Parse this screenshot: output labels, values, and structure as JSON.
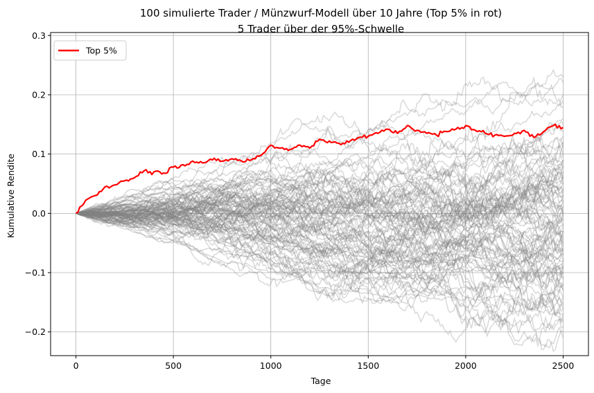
{
  "chart_data": {
    "type": "line",
    "title": "100 simulierte Trader / Münzwurf-Modell über 10 Jahre (Top 5% in rot)",
    "subtitle": "5 Trader über der 95%-Schwelle",
    "xlabel": "Tage",
    "ylabel": "Kumulative Rendite",
    "xlim": [
      -130,
      2630
    ],
    "ylim": [
      -0.24,
      0.305
    ],
    "x_ticks": [
      0,
      500,
      1000,
      1500,
      2000,
      2500
    ],
    "x_tick_labels": [
      "0",
      "500",
      "1000",
      "1500",
      "2000",
      "2500"
    ],
    "y_ticks": [
      -0.2,
      -0.1,
      0.0,
      0.1,
      0.2,
      0.3
    ],
    "y_tick_labels": [
      "−0.2",
      "−0.1",
      "0.0",
      "0.1",
      "0.2",
      "0.3"
    ],
    "grid": true,
    "legend_position": "top-left",
    "colors": {
      "highlight": "#ff0000",
      "background_series": "#808080"
    },
    "background_series_count": 100,
    "background_series_end_values": [
      0.23,
      0.22,
      0.2,
      0.18,
      0.16,
      0.14,
      0.13,
      0.12,
      0.11,
      0.1,
      0.1,
      0.09,
      0.09,
      0.08,
      0.08,
      0.07,
      0.07,
      0.06,
      0.06,
      0.05,
      0.05,
      0.05,
      0.04,
      0.04,
      0.04,
      0.03,
      0.03,
      0.03,
      0.02,
      0.02,
      0.02,
      0.01,
      0.01,
      0.01,
      0.0,
      0.0,
      0.0,
      0.0,
      -0.01,
      -0.01,
      -0.01,
      -0.02,
      -0.02,
      -0.02,
      -0.03,
      -0.03,
      -0.03,
      -0.04,
      -0.04,
      -0.04,
      -0.05,
      -0.05,
      -0.05,
      -0.06,
      -0.06,
      -0.06,
      -0.07,
      -0.07,
      -0.07,
      -0.08,
      -0.08,
      -0.08,
      -0.09,
      -0.09,
      -0.09,
      -0.1,
      -0.1,
      -0.1,
      -0.11,
      -0.11,
      -0.12,
      -0.12,
      -0.13,
      -0.13,
      -0.14,
      -0.14,
      -0.15,
      -0.15,
      -0.16,
      -0.16,
      -0.17,
      -0.17,
      -0.18,
      -0.18,
      -0.19,
      -0.2,
      -0.21,
      0.15,
      0.12,
      0.09,
      0.06,
      0.03,
      0.0,
      -0.03,
      -0.06,
      -0.09,
      -0.12,
      0.19,
      0.08,
      -0.0
    ],
    "series": [
      {
        "name": "Top 5%",
        "color": "#ff0000",
        "x": [
          0,
          50,
          100,
          150,
          200,
          250,
          300,
          350,
          400,
          450,
          500,
          550,
          600,
          650,
          700,
          750,
          800,
          850,
          900,
          950,
          1000,
          1050,
          1100,
          1150,
          1200,
          1250,
          1300,
          1350,
          1400,
          1450,
          1500,
          1550,
          1600,
          1650,
          1700,
          1750,
          1800,
          1850,
          1900,
          1950,
          2000,
          2050,
          2100,
          2150,
          2200,
          2250,
          2300,
          2350,
          2400,
          2450,
          2500
        ],
        "values": [
          0.0,
          0.022,
          0.03,
          0.045,
          0.048,
          0.055,
          0.06,
          0.072,
          0.07,
          0.068,
          0.078,
          0.082,
          0.088,
          0.085,
          0.09,
          0.088,
          0.092,
          0.088,
          0.09,
          0.098,
          0.115,
          0.11,
          0.108,
          0.115,
          0.11,
          0.125,
          0.122,
          0.118,
          0.12,
          0.128,
          0.13,
          0.135,
          0.142,
          0.135,
          0.148,
          0.14,
          0.135,
          0.132,
          0.138,
          0.142,
          0.148,
          0.14,
          0.135,
          0.132,
          0.13,
          0.135,
          0.14,
          0.128,
          0.138,
          0.148,
          0.145
        ]
      }
    ]
  }
}
